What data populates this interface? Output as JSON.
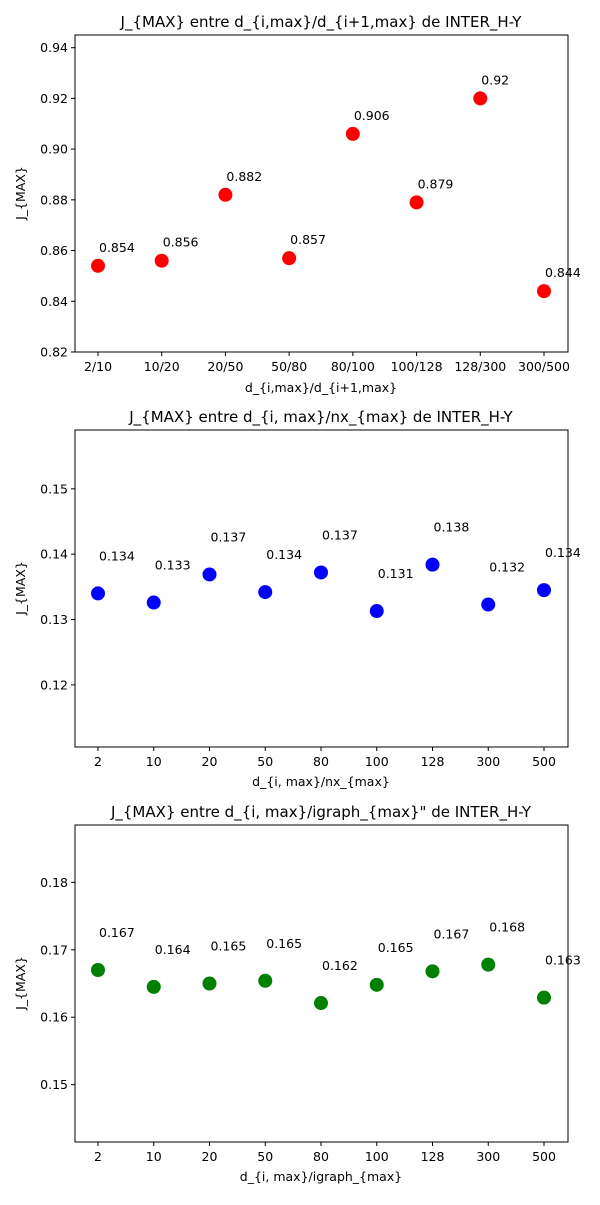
{
  "chart_data": [
    {
      "type": "scatter",
      "title": "J_{MAX} entre d_{i,max}/d_{i+1,max} de INTER_H-Y",
      "xlabel": "d_{i,max}/d_{i+1,max}",
      "ylabel": "J_{MAX}",
      "categories": [
        "2/10",
        "10/20",
        "20/50",
        "50/80",
        "80/100",
        "100/128",
        "128/300",
        "300/500"
      ],
      "values": [
        0.854,
        0.856,
        0.882,
        0.857,
        0.906,
        0.879,
        0.92,
        0.844
      ],
      "value_labels": [
        "0.854",
        "0.856",
        "0.882",
        "0.857",
        "0.906",
        "0.879",
        "0.92",
        "0.844"
      ],
      "ylim": [
        0.82,
        0.945
      ],
      "yticks": [
        "0.82",
        "0.84",
        "0.86",
        "0.88",
        "0.90",
        "0.92",
        "0.94"
      ],
      "color": "#ff0000",
      "grid": false
    },
    {
      "type": "scatter",
      "title": "J_{MAX} entre d_{i, max}/nx_{max} de INTER_H-Y",
      "xlabel": "d_{i, max}/nx_{max}",
      "ylabel": "J_{MAX}",
      "categories": [
        "2",
        "10",
        "20",
        "50",
        "80",
        "100",
        "128",
        "300",
        "500"
      ],
      "values": [
        0.134,
        0.1326,
        0.1369,
        0.1342,
        0.1372,
        0.1313,
        0.1384,
        0.1323,
        0.1345
      ],
      "value_labels": [
        "0.134",
        "0.133",
        "0.137",
        "0.134",
        "0.137",
        "0.131",
        "0.138",
        "0.132",
        "0.134"
      ],
      "ylim": [
        0.1105,
        0.159
      ],
      "yticks": [
        "0.12",
        "0.13",
        "0.14",
        "0.15"
      ],
      "color": "#0000ff",
      "grid": false
    },
    {
      "type": "scatter",
      "title": "J_{MAX} entre d_{i, max}/igraph_{max}\" de INTER_H-Y",
      "xlabel": "d_{i, max}/igraph_{max}",
      "ylabel": "J_{MAX}",
      "categories": [
        "2",
        "10",
        "20",
        "50",
        "80",
        "100",
        "128",
        "300",
        "500"
      ],
      "values": [
        0.167,
        0.1645,
        0.165,
        0.1654,
        0.1621,
        0.1648,
        0.1668,
        0.1678,
        0.1629
      ],
      "value_labels": [
        "0.167",
        "0.164",
        "0.165",
        "0.165",
        "0.162",
        "0.165",
        "0.167",
        "0.168",
        "0.163"
      ],
      "ylim": [
        0.1415,
        0.1885
      ],
      "yticks": [
        "0.15",
        "0.16",
        "0.17",
        "0.18"
      ],
      "color": "#008000",
      "grid": false
    }
  ]
}
